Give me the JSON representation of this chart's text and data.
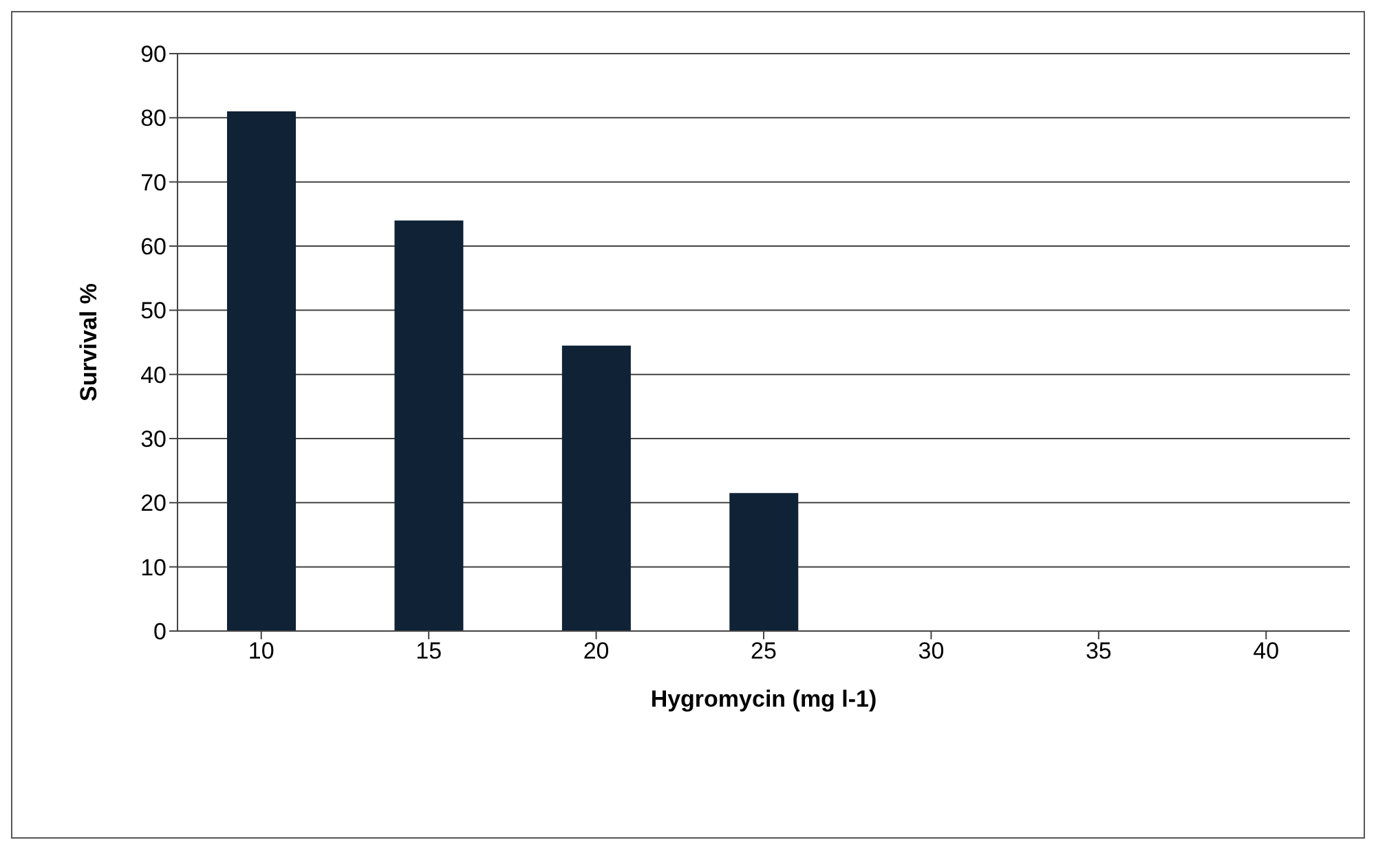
{
  "chart_data": {
    "type": "bar",
    "xlabel": "Hygromycin (mg l-1)",
    "ylabel": "Survival %",
    "categories": [
      "10",
      "15",
      "20",
      "25",
      "30",
      "35",
      "40"
    ],
    "values": [
      81,
      64,
      44.5,
      21.5,
      0,
      0,
      0
    ],
    "color": "#0f2236",
    "ylim": [
      0,
      90
    ],
    "yticks": [
      0,
      10,
      20,
      30,
      40,
      50,
      60,
      70,
      80,
      90
    ],
    "grid": "y"
  }
}
